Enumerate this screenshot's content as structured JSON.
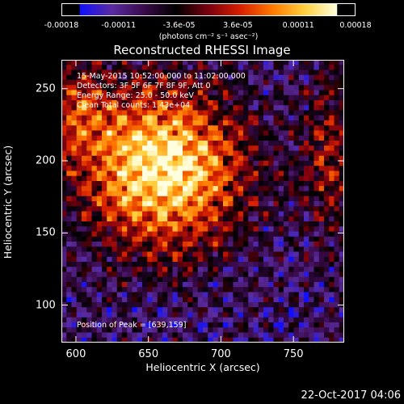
{
  "colorbar": {
    "ticks": [
      "-0.00018",
      "-0.00011",
      "-3.6e-05",
      "3.6e-05",
      "0.00011",
      "0.00018"
    ],
    "tick_values": [
      -0.00018,
      -0.00011,
      -3.6e-05,
      3.6e-05,
      0.00011,
      0.00018
    ],
    "range": [
      -0.00018,
      0.00018
    ],
    "label": "(photons cm⁻² s⁻¹ asec⁻²)"
  },
  "info": {
    "time": "15-May-2015 10:52:00.000 to 11:02:00.000",
    "detectors": "Detectors: 3F 5F 6F 7F 8F 9F, Att 0",
    "energy": "Energy Range: 25.0 - 50.0 keV",
    "clean": "Clean    Total counts: 1.43e+04",
    "peak": "Position of Peak = [639,159]"
  },
  "timestamp": "22-Oct-2017 04:06",
  "colors": {
    "background": "#000000",
    "text": "#ffffff"
  },
  "chart_data": {
    "type": "heatmap",
    "title": "Reconstructed RHESSI Image",
    "xlabel": "Heliocentric X (arcsec)",
    "ylabel": "Heliocentric Y (arcsec)",
    "x_ticks": [
      600,
      650,
      700,
      750
    ],
    "y_ticks": [
      100,
      150,
      200,
      250
    ],
    "xlim": [
      590,
      785
    ],
    "ylim": [
      74,
      270
    ],
    "peak": [
      639,
      159
    ],
    "colormap": [
      "#1010ff",
      "#5a2ca0",
      "#3a0a4a",
      "#000000",
      "#7a0010",
      "#d82000",
      "#ff7a00",
      "#ffd040",
      "#ffffe0"
    ]
  }
}
